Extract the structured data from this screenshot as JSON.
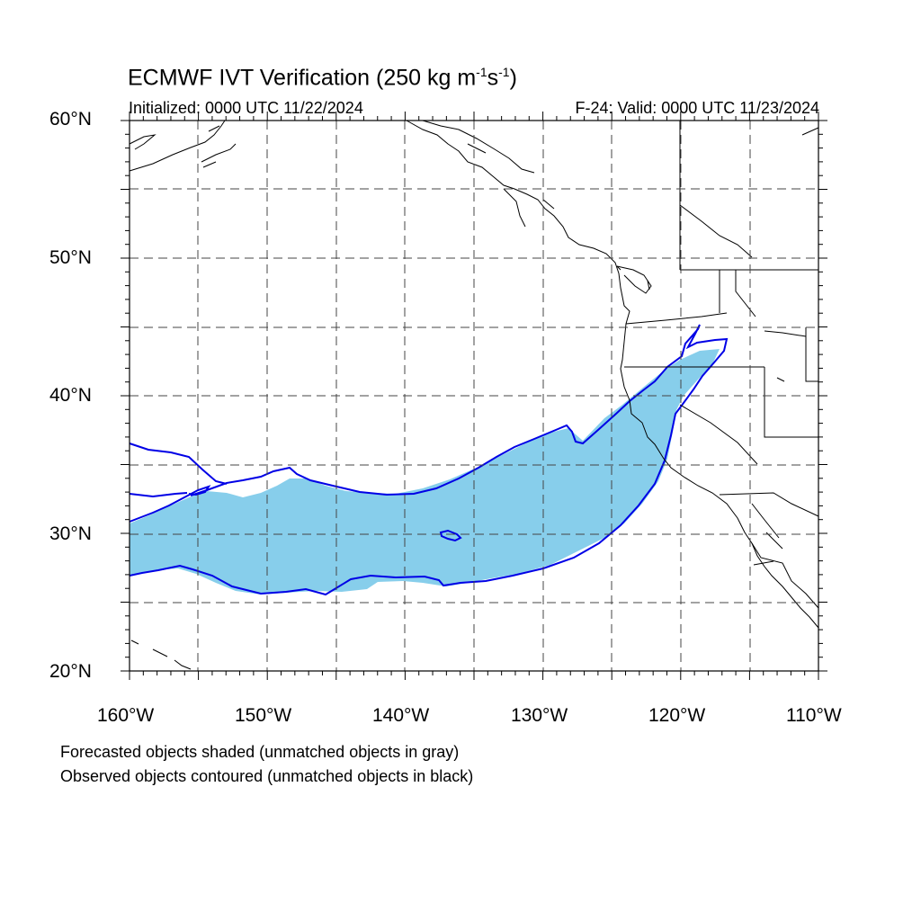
{
  "title": {
    "main": "ECMWF IVT Verification (250 kg m",
    "sup1": "-1",
    "mid": "s",
    "sup2": "-1",
    "end": ")"
  },
  "subtitle_left": "Initialized: 0000 UTC 11/22/2024",
  "subtitle_right": "F-24: Valid: 0000 UTC 11/23/2024",
  "lat_labels": [
    "60°N",
    "50°N",
    "40°N",
    "30°N",
    "20°N"
  ],
  "lon_labels": [
    "160°W",
    "150°W",
    "140°W",
    "130°W",
    "120°W",
    "110°W"
  ],
  "footnote_1": "Forecasted objects shaded (unmatched objects in gray)",
  "footnote_2": "Observed objects contoured (unmatched objects in black)",
  "colors": {
    "forecast_fill": "#87ceeb",
    "observed_contour": "#0000e6",
    "coastline": "#000000",
    "grid": "#444444"
  },
  "map": {
    "lon_range": [
      -160,
      -110
    ],
    "lat_range": [
      20,
      60
    ],
    "grid_spacing_deg": 5,
    "grid_style": "dashed"
  }
}
